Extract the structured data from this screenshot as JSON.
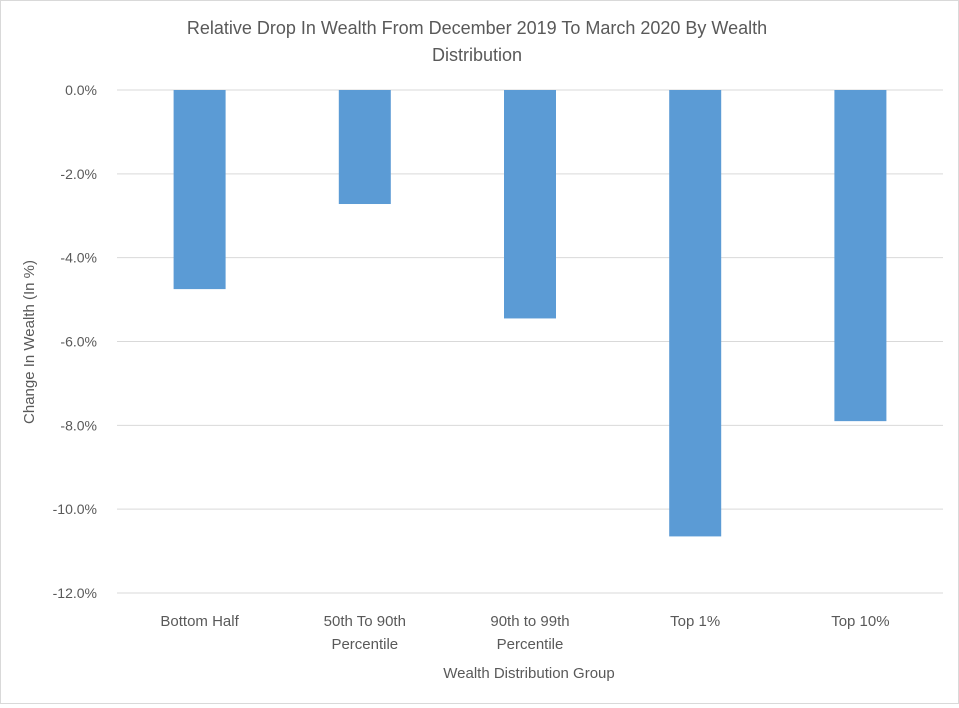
{
  "chart_data": {
    "type": "bar",
    "title_lines": [
      "Relative Drop In Wealth From December 2019 To March 2020 By Wealth",
      "Distribution"
    ],
    "xlabel": "Wealth Distribution Group",
    "ylabel": "Change In Wealth (In %)",
    "categories": [
      [
        "Bottom Half"
      ],
      [
        "50th To 90th",
        "Percentile"
      ],
      [
        "90th to 99th",
        "Percentile"
      ],
      [
        "Top 1%"
      ],
      [
        "Top 10%"
      ]
    ],
    "values": [
      -4.75,
      -2.72,
      -5.45,
      -10.65,
      -7.9
    ],
    "ylim": [
      -12,
      0
    ],
    "yticks": [
      0,
      -2,
      -4,
      -6,
      -8,
      -10,
      -12
    ],
    "ytick_labels": [
      "0.0%",
      "-2.0%",
      "-4.0%",
      "-6.0%",
      "-8.0%",
      "-10.0%",
      "-12.0%"
    ],
    "grid": true,
    "legend": "none",
    "colors": {
      "bar": "#5b9bd5",
      "grid": "#d9d9d9",
      "text": "#595959"
    }
  }
}
